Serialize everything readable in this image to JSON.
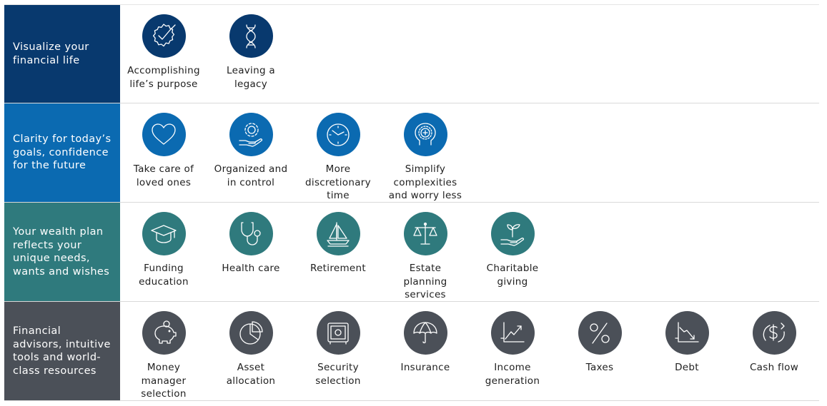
{
  "colors": {
    "row1": "#08396e",
    "row2": "#0b6ab1",
    "row3": "#2f7a7d",
    "row4": "#4b5058"
  },
  "rows": [
    {
      "label": "Visualize your\nfinancial life",
      "items": [
        {
          "icon": "checkmark-seal-icon",
          "label": "Accomplishing\nlife’s purpose"
        },
        {
          "icon": "dna-icon",
          "label": "Leaving a\nlegacy"
        }
      ]
    },
    {
      "label": "Clarity for today’s\ngoals, confidence\nfor the future",
      "items": [
        {
          "icon": "heart-icon",
          "label": "Take care of\nloved ones"
        },
        {
          "icon": "gear-hand-icon",
          "label": "Organized and\nin control"
        },
        {
          "icon": "clock-icon",
          "label": "More\ndiscretionary\ntime"
        },
        {
          "icon": "head-mind-icon",
          "label": "Simplify\ncomplexities\nand worry less"
        }
      ]
    },
    {
      "label": "Your wealth plan\nreflects your\nunique needs,\nwants and wishes",
      "items": [
        {
          "icon": "graduation-cap-icon",
          "label": "Funding\neducation"
        },
        {
          "icon": "stethoscope-icon",
          "label": "Health care"
        },
        {
          "icon": "sailboat-icon",
          "label": "Retirement"
        },
        {
          "icon": "scales-icon",
          "label": "Estate\nplanning\nservices"
        },
        {
          "icon": "plant-hand-icon",
          "label": "Charitable\ngiving"
        }
      ]
    },
    {
      "label": "Financial\nadvisors, intuitive\ntools and world-\nclass resources",
      "items": [
        {
          "icon": "piggy-bank-icon",
          "label": "Money\nmanager\nselection"
        },
        {
          "icon": "pie-chart-icon",
          "label": "Asset\nallocation"
        },
        {
          "icon": "safe-icon",
          "label": "Security\nselection"
        },
        {
          "icon": "umbrella-icon",
          "label": "Insurance"
        },
        {
          "icon": "growth-chart-icon",
          "label": "Income\ngeneration"
        },
        {
          "icon": "percent-icon",
          "label": "Taxes"
        },
        {
          "icon": "decline-chart-icon",
          "label": "Debt"
        },
        {
          "icon": "dollar-cycle-icon",
          "label": "Cash flow"
        }
      ]
    }
  ]
}
